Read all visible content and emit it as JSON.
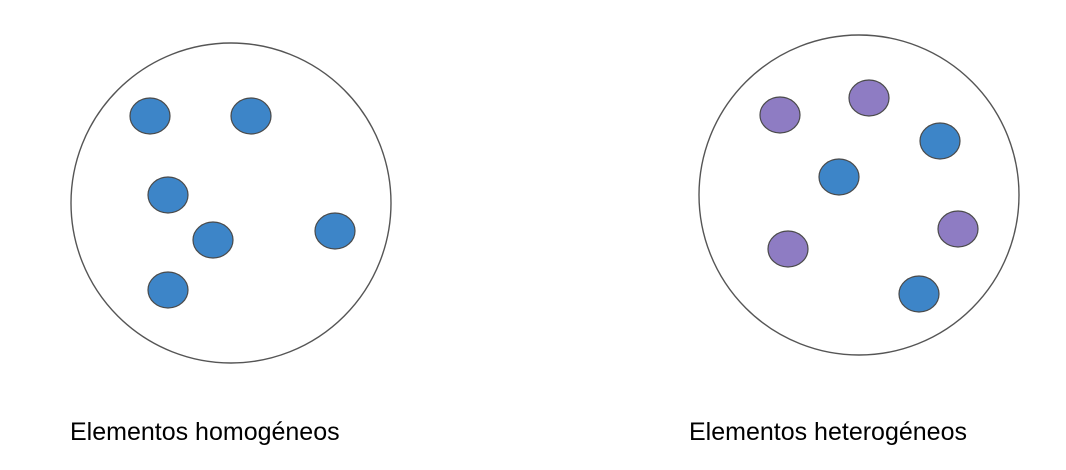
{
  "colors": {
    "background": "#ffffff",
    "container_stroke": "#555555",
    "element_stroke": "#4a4a4a",
    "type_a": "#3d85c8",
    "type_b": "#8e7cc3",
    "text": "#000000"
  },
  "panels": [
    {
      "id": "homogeneous",
      "caption": "Elementos homogéneos",
      "element_colors": [
        "type_a",
        "type_a",
        "type_a",
        "type_a",
        "type_a",
        "type_a"
      ]
    },
    {
      "id": "heterogeneous",
      "caption": "Elementos heterogéneos",
      "element_colors": [
        "type_b",
        "type_b",
        "type_a",
        "type_a",
        "type_b",
        "type_b",
        "type_a"
      ]
    }
  ]
}
